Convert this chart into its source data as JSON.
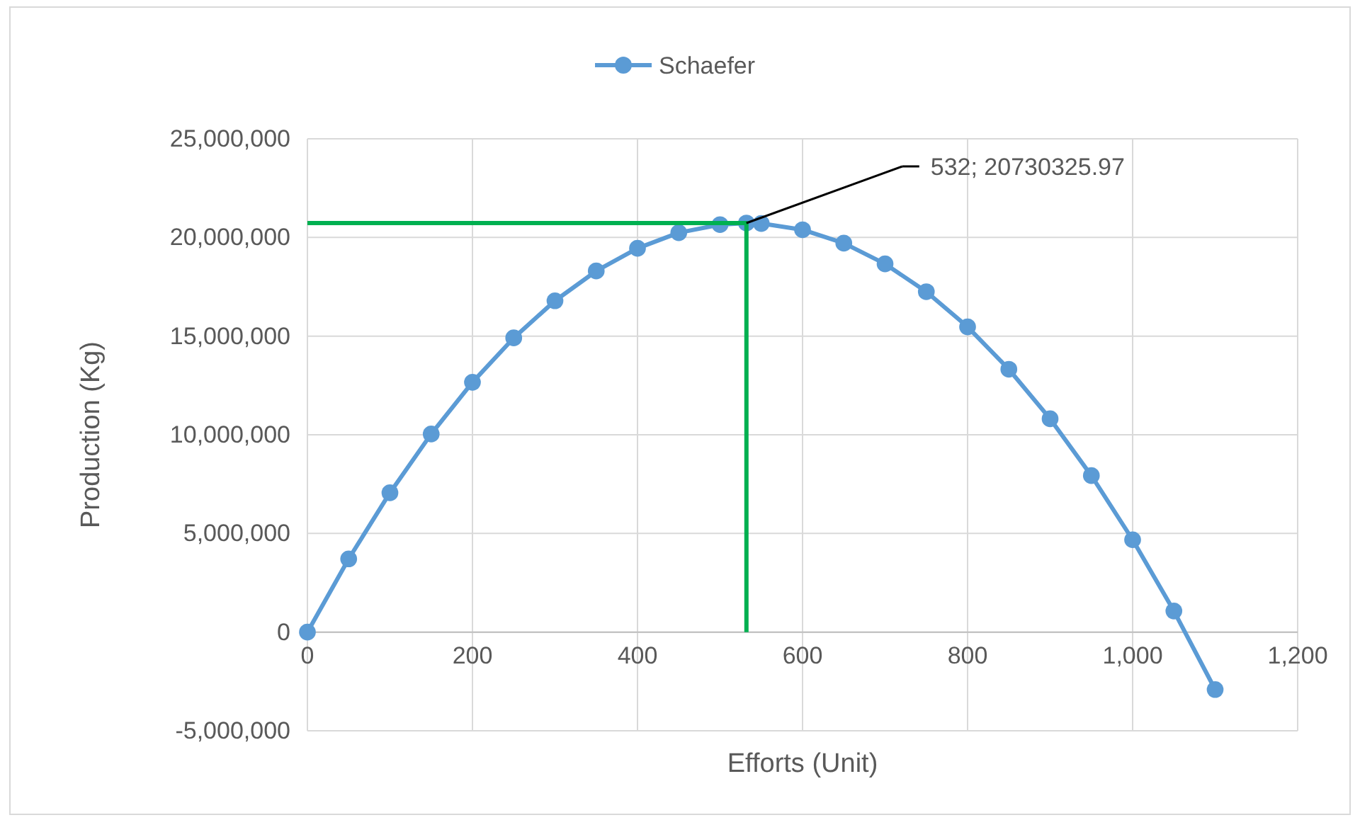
{
  "chart_data": {
    "type": "line",
    "xlabel": "Efforts (Unit)",
    "ylabel": "Production (Kg)",
    "xlim": [
      0,
      1200
    ],
    "xticks": [
      0,
      200,
      400,
      600,
      800,
      {
        "value": 1000,
        "label": "1,000"
      },
      {
        "value": 1200,
        "label": "1,200"
      }
    ],
    "ylim": [
      -5000000,
      25000000
    ],
    "yticks": [
      {
        "value": -5000000,
        "label": "-5,000,000"
      },
      0,
      {
        "value": 5000000,
        "label": "5,000,000"
      },
      {
        "value": 10000000,
        "label": "10,000,000"
      },
      {
        "value": 15000000,
        "label": "15,000,000"
      },
      {
        "value": 20000000,
        "label": "20,000,000"
      },
      {
        "value": 25000000,
        "label": "25,000,000"
      }
    ],
    "grid": true,
    "legend": "top",
    "marker": "circle",
    "line_style": "solid",
    "series": [
      {
        "name": "Schaefer",
        "color": "#5b9bd5",
        "x": [
          0,
          50,
          100,
          150,
          200,
          250,
          300,
          350,
          400,
          450,
          500,
          532,
          550,
          600,
          650,
          700,
          750,
          800,
          850,
          900,
          950,
          1000,
          1050,
          1100
        ],
        "values": [
          0,
          3710000,
          7060000,
          10040000,
          12660000,
          14910000,
          16790000,
          18300000,
          19450000,
          20240000,
          20650000,
          20730000,
          20710000,
          20390000,
          19710000,
          18660000,
          17250000,
          15470000,
          13320000,
          10810000,
          7930000,
          4680000,
          1070000,
          -2910000
        ]
      },
      {
        "type": "line",
        "marker": "none",
        "color": "#00b050",
        "x": [
          0,
          532,
          532
        ],
        "values": [
          20730000,
          20730000,
          0
        ]
      }
    ],
    "annotations": [
      {
        "text": "532; 20730325.97",
        "x": 532,
        "y": 20730325.97
      }
    ]
  }
}
